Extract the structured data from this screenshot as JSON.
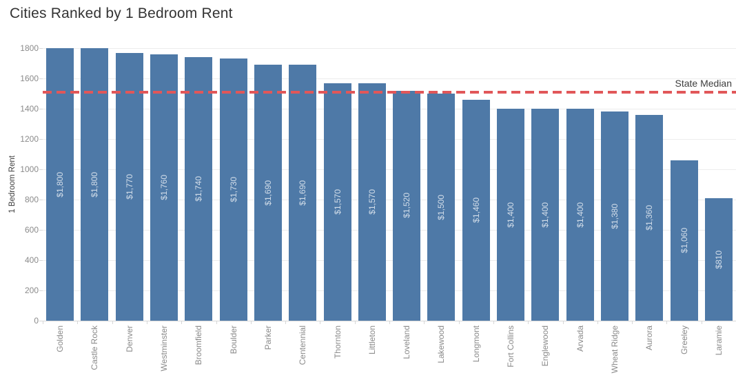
{
  "chart_data": {
    "type": "bar",
    "title": "Cities Ranked by 1 Bedroom Rent",
    "ylabel": "1 Bedroom Rent",
    "xlabel": "",
    "ylim": [
      0,
      1800
    ],
    "yticks": [
      0,
      200,
      400,
      600,
      800,
      1000,
      1200,
      1400,
      1600,
      1800
    ],
    "ytick_labels": [
      "0",
      "200",
      "400",
      "600",
      "800",
      "1000",
      "1200",
      "1400",
      "1600",
      "1800"
    ],
    "grid": "horizontal",
    "legend": "none",
    "categories": [
      "Golden",
      "Castle Rock",
      "Denver",
      "Westminster",
      "Broomfield",
      "Boulder",
      "Parker",
      "Centennial",
      "Thornton",
      "Littleton",
      "Loveland",
      "Lakewood",
      "Longmont",
      "Fort Collins",
      "Englewood",
      "Arvada",
      "Wheat Ridge",
      "Aurora",
      "Greeley",
      "Laramie"
    ],
    "values": [
      1800,
      1800,
      1770,
      1760,
      1740,
      1730,
      1690,
      1690,
      1570,
      1570,
      1520,
      1500,
      1460,
      1400,
      1400,
      1400,
      1380,
      1360,
      1060,
      810
    ],
    "bar_labels": [
      "$1,800",
      "$1,800",
      "$1,770",
      "$1,760",
      "$1,740",
      "$1,730",
      "$1,690",
      "$1,690",
      "$1,570",
      "$1,570",
      "$1,520",
      "$1,500",
      "$1,460",
      "$1,400",
      "$1,400",
      "$1,400",
      "$1,380",
      "$1,360",
      "$1,060",
      "$810"
    ],
    "reference_line": {
      "label": "State Median",
      "value": 1510,
      "style": "dashed"
    },
    "colors": {
      "bar": "#4e79a7",
      "bar_label": "rgba(255,255,255,0.75)",
      "reference_line": "#e15759",
      "axis_text": "#8a8a8a",
      "title_text": "#333333",
      "gridline": "#ececec",
      "axis_line": "#d7d7d7"
    }
  }
}
